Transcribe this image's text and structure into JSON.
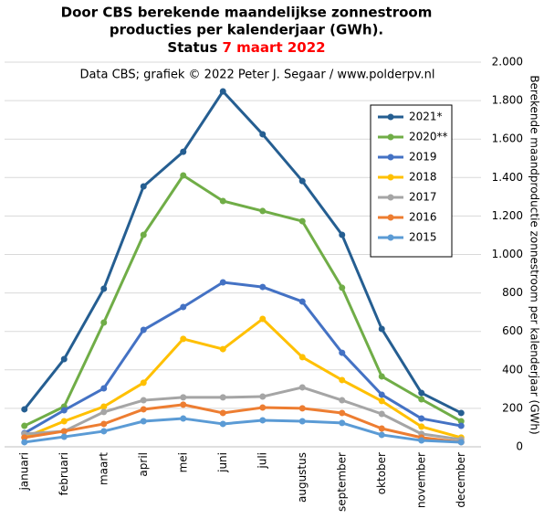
{
  "chart_data": {
    "type": "line",
    "title": {
      "lines": [
        "Door CBS berekende maandelijkse  zonnestroom",
        "producties per kalenderjaar (GWh).",
        "Status"
      ],
      "highlight": "7 maart 2022",
      "highlight_color": "#ff0000"
    },
    "subtitle": "Data CBS; grafiek © 2022 Peter J. Segaar / www.polderpv.nl",
    "y_axis_label": "Berekende maandproductie zonnestroom per kalenderjaar (GWh)",
    "categories": [
      "januari",
      "februari",
      "maart",
      "april",
      "mei",
      "juni",
      "juli",
      "augustus",
      "september",
      "oktober",
      "november",
      "december"
    ],
    "ylim": [
      0,
      2000
    ],
    "yticks": [
      0,
      200,
      400,
      600,
      800,
      {
        "value": 1000,
        "label": "1.000"
      },
      {
        "value": 1200,
        "label": "1.200"
      },
      {
        "value": 1400,
        "label": "1.400"
      },
      {
        "value": 1600,
        "label": "1.600"
      },
      {
        "value": 1800,
        "label": "1.800"
      },
      {
        "value": 2000,
        "label": "2.000"
      }
    ],
    "grid": true,
    "legend": "upper right",
    "series": [
      {
        "name": "2021*",
        "color": "#255e91",
        "values": [
          195,
          456,
          822,
          1354,
          1534,
          1848,
          1625,
          1382,
          1102,
          613,
          280,
          176
        ]
      },
      {
        "name": "2020**",
        "color": "#70ad47",
        "values": [
          109,
          209,
          646,
          1102,
          1411,
          1278,
          1226,
          1173,
          827,
          366,
          247,
          133
        ]
      },
      {
        "name": "2019",
        "color": "#4472c4",
        "values": [
          71,
          190,
          304,
          608,
          727,
          855,
          831,
          755,
          489,
          271,
          147,
          109
        ]
      },
      {
        "name": "2018",
        "color": "#ffc000",
        "values": [
          48,
          133,
          209,
          333,
          561,
          508,
          665,
          466,
          347,
          238,
          105,
          48
        ]
      },
      {
        "name": "2017",
        "color": "#a5a5a5",
        "values": [
          67,
          81,
          181,
          242,
          257,
          257,
          261,
          309,
          242,
          171,
          67,
          38
        ]
      },
      {
        "name": "2016",
        "color": "#ed7d31",
        "values": [
          48,
          81,
          119,
          195,
          219,
          176,
          204,
          200,
          176,
          95,
          48,
          24
        ]
      },
      {
        "name": "2015",
        "color": "#5b9bd5",
        "values": [
          24,
          52,
          81,
          133,
          147,
          119,
          138,
          133,
          124,
          62,
          33,
          24
        ]
      }
    ]
  }
}
